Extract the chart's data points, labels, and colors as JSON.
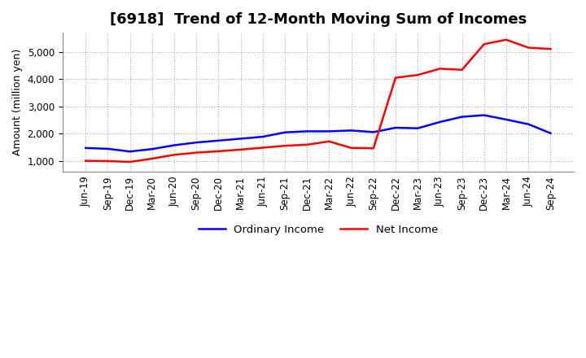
{
  "title": "[6918]  Trend of 12-Month Moving Sum of Incomes",
  "ylabel": "Amount (million yen)",
  "x_labels": [
    "Jun-19",
    "Sep-19",
    "Dec-19",
    "Mar-20",
    "Jun-20",
    "Sep-20",
    "Dec-20",
    "Mar-21",
    "Jun-21",
    "Sep-21",
    "Dec-21",
    "Mar-22",
    "Jun-22",
    "Sep-22",
    "Dec-22",
    "Mar-23",
    "Jun-23",
    "Sep-23",
    "Dec-23",
    "Mar-24",
    "Jun-24",
    "Sep-24"
  ],
  "ordinary_income": [
    1480,
    1450,
    1350,
    1440,
    1580,
    1680,
    1750,
    1820,
    1890,
    2050,
    2090,
    2090,
    2120,
    2060,
    2220,
    2200,
    2430,
    2620,
    2680,
    2520,
    2350,
    2020
  ],
  "net_income": [
    1010,
    1000,
    970,
    1090,
    1230,
    1310,
    1360,
    1420,
    1490,
    1560,
    1600,
    1720,
    1480,
    1470,
    4050,
    4150,
    4380,
    4340,
    5280,
    5440,
    5150,
    5100
  ],
  "ordinary_color": "#0000ff",
  "net_color": "#ff0000",
  "ylim_min": 600,
  "ylim_max": 5700,
  "yticks": [
    1000,
    2000,
    3000,
    4000,
    5000
  ],
  "background_color": "#ffffff",
  "grid_color": "#aaaaaa",
  "title_fontsize": 13,
  "label_fontsize": 9,
  "tick_fontsize": 8.5
}
